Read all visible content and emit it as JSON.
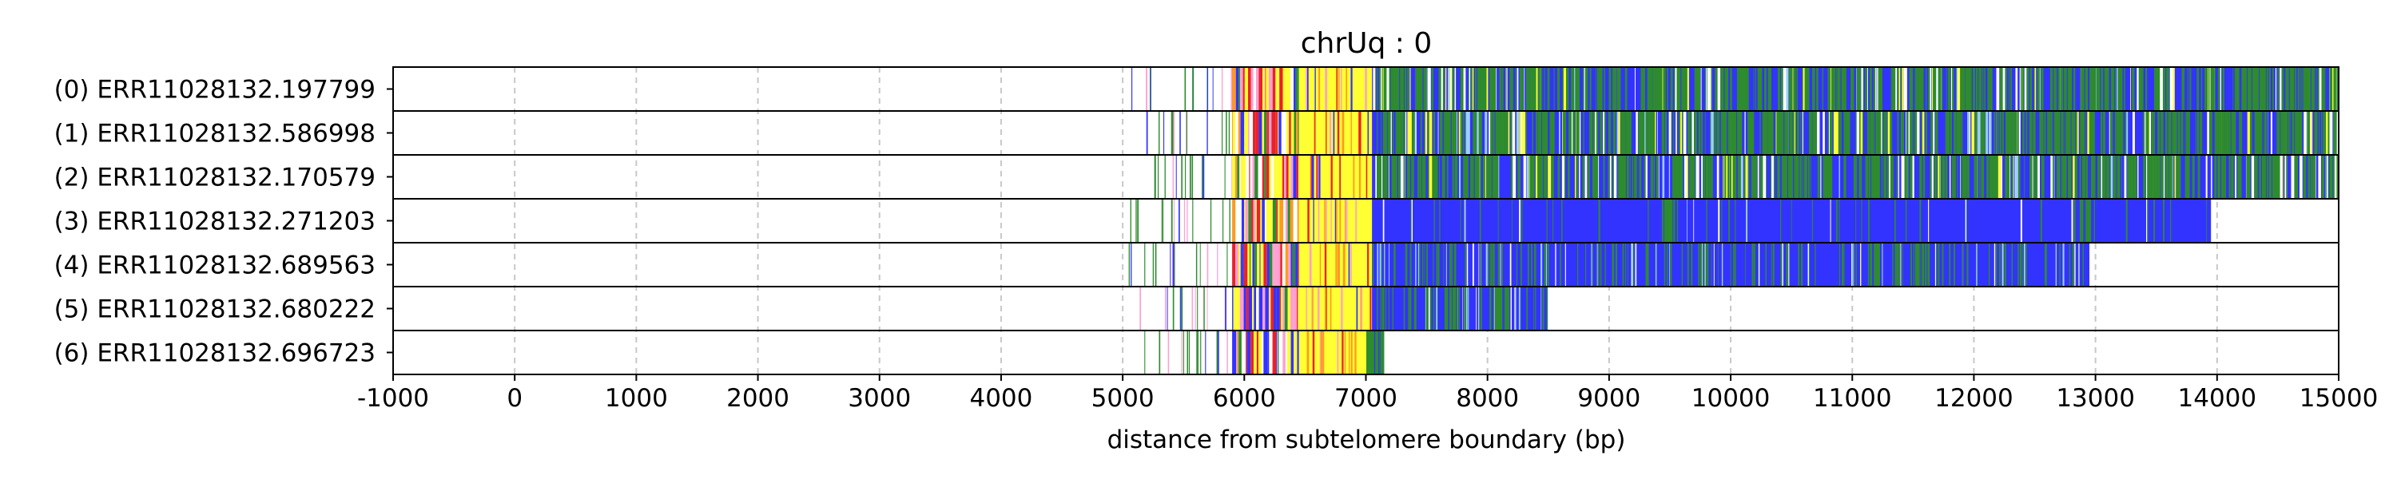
{
  "chart_data": {
    "type": "heatmap",
    "title": "chrUq : 0",
    "xlabel": "distance from subtelomere boundary (bp)",
    "ylabel": "",
    "xlim": [
      -1000,
      15000
    ],
    "xticks": [
      -1000,
      0,
      1000,
      2000,
      3000,
      4000,
      5000,
      6000,
      7000,
      8000,
      9000,
      10000,
      11000,
      12000,
      13000,
      14000,
      15000
    ],
    "grid": "vertical dashed",
    "colors": {
      "blue": "#3333ff",
      "green": "#2e8b2e",
      "yellow": "#ffff33",
      "red": "#e8222a",
      "pink": "#ff9fd0",
      "orange": "#ff9922",
      "white": "#ffffff",
      "grid": "#c8c8c8"
    },
    "reads": [
      {
        "label": "(0) ERR11028132.197799",
        "end": 15000
      },
      {
        "label": "(1) ERR11028132.586998",
        "end": 15000
      },
      {
        "label": "(2) ERR11028132.170579",
        "end": 15000
      },
      {
        "label": "(3) ERR11028132.271203",
        "end": 13950
      },
      {
        "label": "(4) ERR11028132.689563",
        "end": 12950
      },
      {
        "label": "(5) ERR11028132.680222",
        "end": 8500
      },
      {
        "label": "(6) ERR11028132.696723",
        "end": 7150
      }
    ],
    "regions": [
      {
        "from": 5000,
        "to": 5900,
        "pattern": "sparse thin green/blue/pink lines"
      },
      {
        "from": 5900,
        "to": 6450,
        "pattern": "dense red/pink/yellow/blue/green"
      },
      {
        "from": 6450,
        "to": 7050,
        "pattern": "yellow with orange/pink bands"
      },
      {
        "from": 7050,
        "to": 15000,
        "pattern": "blue with green/white/yellow stripes"
      }
    ]
  }
}
